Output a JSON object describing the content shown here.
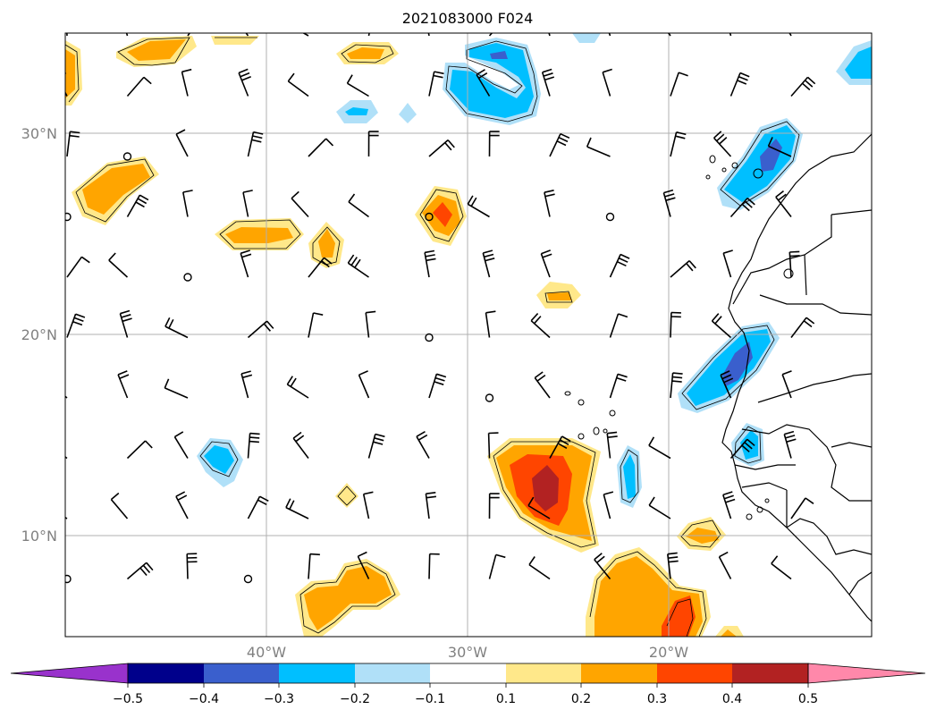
{
  "title": "2021083000 F024",
  "map": {
    "lat_ticks": [
      "30°N",
      "20°N",
      "10°N"
    ],
    "lon_ticks": [
      "40°W",
      "30°W",
      "20°W"
    ],
    "gridline_color": "#b0b0b0",
    "tick_label_color": "#808080"
  },
  "colorbar": {
    "labels": [
      "−0.5",
      "−0.4",
      "−0.3",
      "−0.2",
      "−0.1",
      "0.1",
      "0.2",
      "0.3",
      "0.4",
      "0.5"
    ],
    "colors": {
      "lt_neg05": "#9932cc",
      "n05_n04": "#00008b",
      "n04_n03": "#3a5fcd",
      "n03_n02": "#00bfff",
      "n02_n01": "#b0e0f8",
      "n01_p01": "#ffffff",
      "p01_p02": "#ffe88a",
      "p02_p03": "#ffa500",
      "p03_p04": "#ff4500",
      "p04_p05": "#b22222",
      "gt_p05": "#ff88aa"
    }
  }
}
